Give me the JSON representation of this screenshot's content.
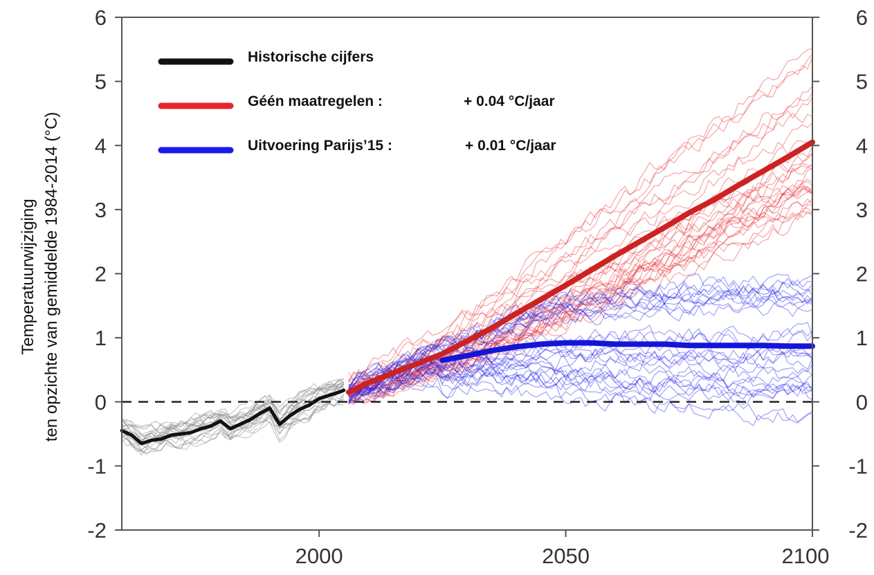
{
  "chart_data": {
    "type": "line",
    "title": "",
    "xlabel": "",
    "ylabel": [
      "Temperatuurwijziging",
      "ten opzichte van gemiddelde 1984-2014 (°C)"
    ],
    "xlim": [
      1960,
      2100
    ],
    "ylim": [
      -2,
      6
    ],
    "x_ticks": [
      2000,
      2050,
      2100
    ],
    "y_ticks": [
      -2,
      -1,
      0,
      1,
      2,
      3,
      4,
      5,
      6
    ],
    "y_axis_right": true,
    "grid": false,
    "reference_line": {
      "y": 0,
      "style": "dashed",
      "color": "#222222"
    },
    "legend": {
      "placement": "top-left",
      "entries": [
        {
          "label": "Historische cijfers",
          "rate": "",
          "color": "#111111"
        },
        {
          "label": "Géén maatregelen :",
          "rate": "+ 0.04 °C/jaar",
          "color": "#e8252a"
        },
        {
          "label": "Uitvoering Parijs’15 :",
          "rate": "+ 0.01 °C/jaar",
          "color": "#1a1aee"
        }
      ]
    },
    "series": [
      {
        "name": "Historische cijfers",
        "color": "#111111",
        "x": [
          1960,
          1962,
          1964,
          1966,
          1968,
          1970,
          1972,
          1974,
          1976,
          1978,
          1980,
          1982,
          1984,
          1986,
          1988,
          1990,
          1992,
          1994,
          1996,
          1998,
          2000,
          2002,
          2004,
          2005
        ],
        "y": [
          -0.45,
          -0.52,
          -0.65,
          -0.6,
          -0.58,
          -0.52,
          -0.5,
          -0.48,
          -0.42,
          -0.38,
          -0.3,
          -0.42,
          -0.35,
          -0.28,
          -0.18,
          -0.1,
          -0.35,
          -0.22,
          -0.12,
          -0.05,
          0.05,
          0.1,
          0.15,
          0.18
        ],
        "spread": 0.18
      },
      {
        "name": "Géén maatregelen :",
        "color": "#e8252a",
        "x": [
          2006,
          2010,
          2015,
          2020,
          2025,
          2030,
          2035,
          2040,
          2045,
          2050,
          2055,
          2060,
          2065,
          2070,
          2075,
          2080,
          2085,
          2090,
          2095,
          2100
        ],
        "y": [
          0.15,
          0.3,
          0.45,
          0.6,
          0.75,
          0.95,
          1.15,
          1.38,
          1.6,
          1.82,
          2.05,
          2.28,
          2.5,
          2.72,
          2.95,
          3.15,
          3.38,
          3.6,
          3.82,
          4.05
        ],
        "ensemble_low": [
          0.0,
          0.1,
          0.22,
          0.32,
          0.42,
          0.55,
          0.7,
          0.85,
          1.0,
          1.2,
          1.38,
          1.55,
          1.72,
          1.9,
          2.05,
          2.2,
          2.4,
          2.55,
          2.7,
          2.85
        ],
        "ensemble_high": [
          0.4,
          0.55,
          0.75,
          0.95,
          1.15,
          1.4,
          1.7,
          2.0,
          2.3,
          2.6,
          2.9,
          3.2,
          3.5,
          3.8,
          4.1,
          4.4,
          4.7,
          5.0,
          5.3,
          5.55
        ]
      },
      {
        "name": "Uitvoering Parijs’15 :",
        "color": "#1a1aee",
        "x": [
          2025,
          2030,
          2035,
          2040,
          2045,
          2050,
          2055,
          2060,
          2065,
          2070,
          2075,
          2080,
          2085,
          2090,
          2095,
          2100
        ],
        "y": [
          0.65,
          0.72,
          0.8,
          0.86,
          0.9,
          0.92,
          0.92,
          0.9,
          0.9,
          0.9,
          0.88,
          0.88,
          0.88,
          0.88,
          0.87,
          0.87
        ],
        "ensemble_low": [
          0.2,
          0.25,
          0.25,
          0.15,
          0.1,
          0.05,
          0.0,
          0.0,
          -0.05,
          -0.1,
          -0.1,
          -0.15,
          -0.15,
          -0.2,
          -0.2,
          -0.2
        ],
        "ensemble_high": [
          0.95,
          1.05,
          1.2,
          1.4,
          1.55,
          1.65,
          1.7,
          1.75,
          1.8,
          1.8,
          1.85,
          1.85,
          1.85,
          1.9,
          1.9,
          1.9
        ]
      }
    ]
  }
}
